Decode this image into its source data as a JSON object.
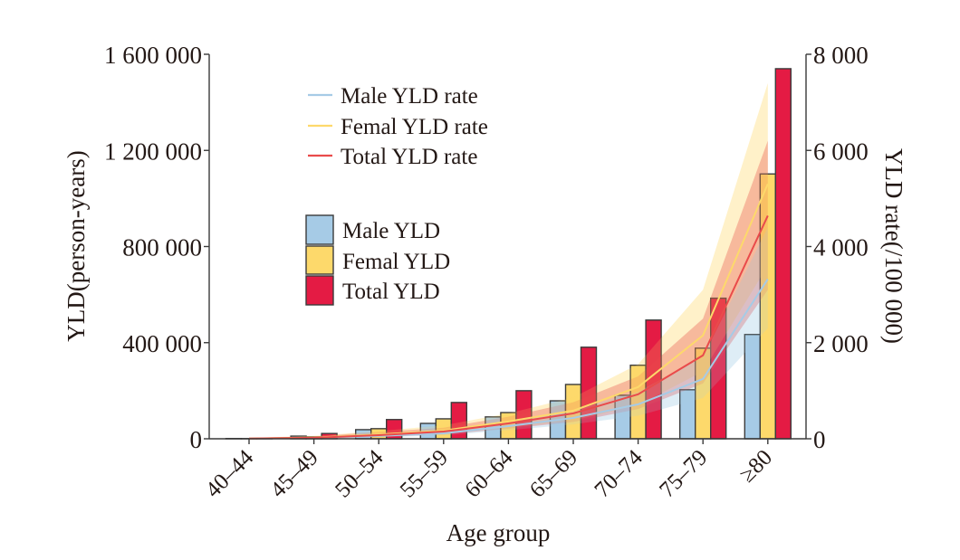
{
  "chart_data": {
    "type": "bar",
    "title": "",
    "xlabel": "Age group",
    "ylabel": "YLD(person-years)",
    "y2label": "YLD rate(/100 000)",
    "categories": [
      "40–44",
      "45–49",
      "50–54",
      "55–59",
      "60–64",
      "65–69",
      "70–74",
      "75–79",
      "≥80"
    ],
    "ylim": [
      0,
      1600000
    ],
    "y2lim": [
      0,
      8000
    ],
    "yticks": [
      0,
      400000,
      800000,
      1200000,
      1600000
    ],
    "ytick_labels": [
      "0",
      "400 000",
      "800 000",
      "1 200 000",
      "1 600 000"
    ],
    "y2ticks": [
      0,
      2000,
      4000,
      6000,
      8000
    ],
    "y2tick_labels": [
      "0",
      "2 000",
      "4 000",
      "6 000",
      "8 000"
    ],
    "grid": false,
    "bar_series": [
      {
        "name": "Male YLD",
        "color": "#A6CBE6",
        "values": [
          1000,
          11000,
          38000,
          64000,
          91000,
          158000,
          181000,
          204000,
          434000
        ]
      },
      {
        "name": "Femal YLD",
        "color": "#FDD96B",
        "values": [
          800,
          8000,
          42000,
          83000,
          109000,
          226000,
          306000,
          377000,
          1102000
        ]
      },
      {
        "name": "Total YLD",
        "color": "#E41B44",
        "values": [
          1800,
          22000,
          80000,
          151000,
          200000,
          381000,
          494000,
          585000,
          1540000
        ]
      }
    ],
    "line_series": [
      {
        "name": "Male YLD rate",
        "color": "#A6CBE6",
        "axis": "right",
        "values": [
          5,
          20,
          60,
          113,
          264,
          434,
          717,
          1245,
          3321
        ],
        "ci_lower": [
          0,
          5,
          30,
          70,
          180,
          300,
          480,
          850,
          2300
        ],
        "ci_upper": [
          15,
          40,
          110,
          180,
          370,
          600,
          980,
          1700,
          4400
        ]
      },
      {
        "name": "Femal YLD rate",
        "color": "#FDD96B",
        "axis": "right",
        "values": [
          5,
          25,
          90,
          170,
          360,
          585,
          1076,
          2151,
          5303
        ],
        "ci_lower": [
          0,
          5,
          40,
          100,
          230,
          380,
          700,
          1400,
          3600
        ],
        "ci_upper": [
          20,
          60,
          160,
          280,
          530,
          860,
          1550,
          3100,
          7400
        ]
      },
      {
        "name": "Total YLD rate",
        "color": "#E94B4B",
        "axis": "right",
        "values": [
          5,
          22,
          75,
          150,
          320,
          528,
          925,
          1736,
          4642
        ],
        "ci_lower": [
          0,
          5,
          35,
          90,
          210,
          350,
          620,
          1150,
          3100
        ],
        "ci_upper": [
          18,
          50,
          140,
          230,
          460,
          760,
          1300,
          2500,
          6200
        ]
      }
    ],
    "legend": {
      "lines": [
        "Male YLD rate",
        "Femal YLD rate",
        "Total YLD rate"
      ],
      "bars": [
        "Male YLD",
        "Femal YLD",
        "Total YLD"
      ],
      "placement": "upper-left inside plot"
    }
  }
}
